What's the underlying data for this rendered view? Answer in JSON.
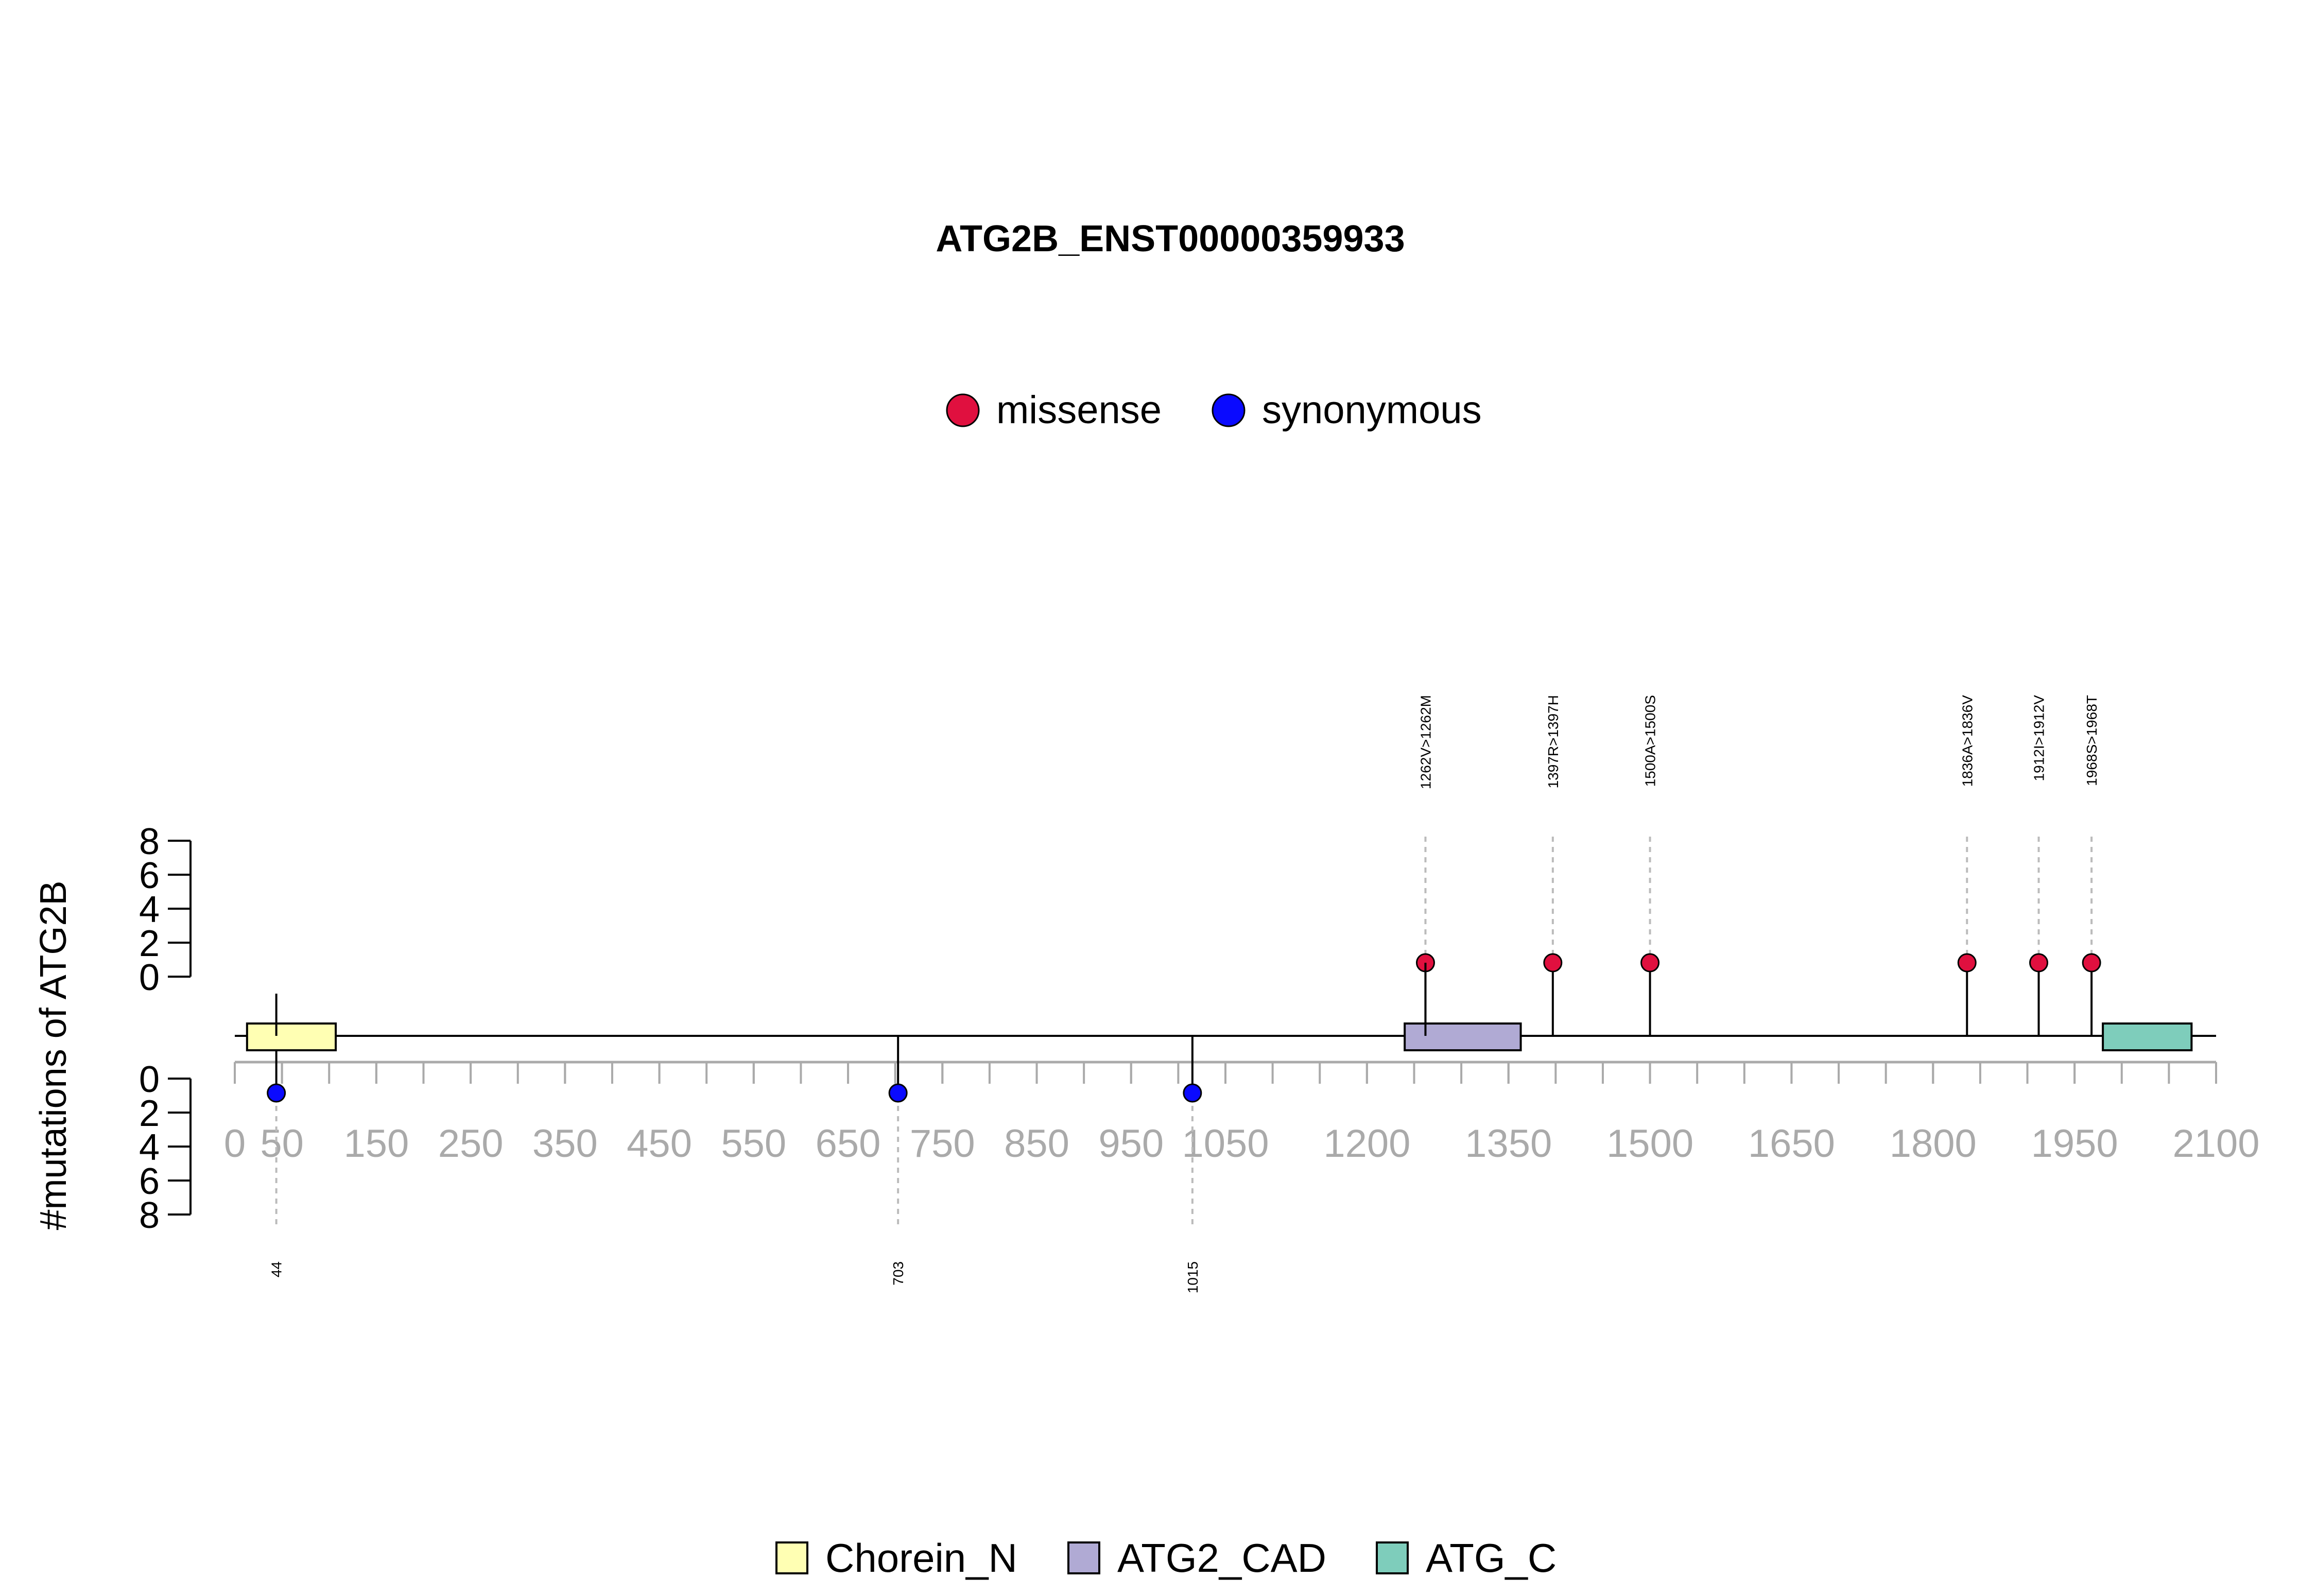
{
  "chart_data": {
    "type": "lollipop",
    "title": "ATG2B_ENST00000359933",
    "ylabel": "#mutations of ATG2B",
    "protein_length": 2078,
    "xlim": [
      0,
      2100
    ],
    "ylim": [
      0,
      8
    ],
    "x_ticks": [
      0,
      50,
      150,
      250,
      350,
      450,
      550,
      650,
      750,
      850,
      950,
      1050,
      1200,
      1350,
      1500,
      1650,
      1800,
      1950,
      2100
    ],
    "y_ticks": [
      0,
      2,
      4,
      6,
      8
    ],
    "legend_top": [
      {
        "label": "missense",
        "color": "#e0103f"
      },
      {
        "label": "synonymous",
        "color": "#0a0aff"
      }
    ],
    "legend_bottom": [
      {
        "label": "Chorein_N",
        "color": "#ffffb3"
      },
      {
        "label": "ATG2_CAD",
        "color": "#b0aad4"
      },
      {
        "label": "ATG_C",
        "color": "#7ecdbb"
      }
    ],
    "domains": [
      {
        "name": "Chorein_N",
        "start": 13,
        "end": 107,
        "color": "#ffffb3"
      },
      {
        "name": "ATG2_CAD",
        "start": 1240,
        "end": 1363,
        "color": "#b0aad4"
      },
      {
        "name": "ATG_C",
        "start": 1980,
        "end": 2074,
        "color": "#7ecdbb"
      }
    ],
    "mutations_top": [
      {
        "position": 1262,
        "label": "1262V>1262M",
        "count": 1,
        "type": "missense"
      },
      {
        "position": 1397,
        "label": "1397R>1397H",
        "count": 1,
        "type": "missense"
      },
      {
        "position": 1500,
        "label": "1500A>1500S",
        "count": 1,
        "type": "missense"
      },
      {
        "position": 1836,
        "label": "1836A>1836V",
        "count": 1,
        "type": "missense"
      },
      {
        "position": 1912,
        "label": "1912I>1912V",
        "count": 1,
        "type": "missense"
      },
      {
        "position": 1968,
        "label": "1968S>1968T",
        "count": 1,
        "type": "missense"
      }
    ],
    "mutations_bottom": [
      {
        "position": 44,
        "label": "44",
        "count": 1,
        "type": "synonymous"
      },
      {
        "position": 703,
        "label": "703",
        "count": 1,
        "type": "synonymous"
      },
      {
        "position": 1015,
        "label": "1015",
        "count": 1,
        "type": "synonymous"
      }
    ]
  }
}
